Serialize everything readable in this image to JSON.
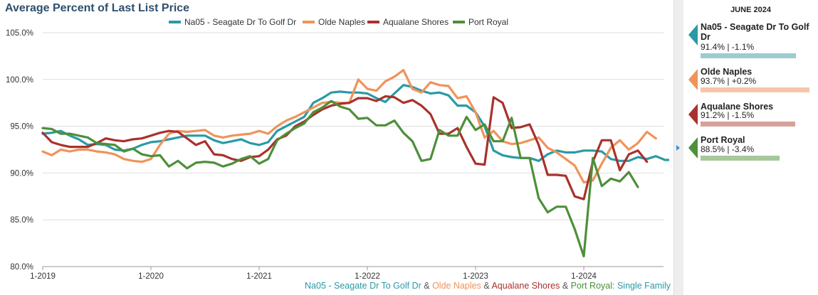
{
  "title": "Average Percent of Last List Price",
  "footer": {
    "parts": [
      {
        "text": "Na05 - Seagate Dr To Golf Dr",
        "color": "#2a9aa5"
      },
      {
        "text": " & ",
        "color": "#555555"
      },
      {
        "text": "Olde Naples",
        "color": "#f0935a"
      },
      {
        "text": " & ",
        "color": "#555555"
      },
      {
        "text": "Aqualane Shores",
        "color": "#a8322b"
      },
      {
        "text": " & ",
        "color": "#555555"
      },
      {
        "text": "Port Royal",
        "color": "#4d8f3a"
      },
      {
        "text": ": Single Family",
        "color": "#2a9aa5"
      }
    ]
  },
  "side_panel": {
    "month": "JUNE 2024",
    "cards": [
      {
        "name": "Na05 - Seagate Dr To Golf Dr",
        "value": "91.4% | -1.1%",
        "color": "#2a9aa5",
        "bar_color": "#9ccbd0",
        "bar_fraction": 0.914
      },
      {
        "name": "Olde Naples",
        "value": "93.7% | +0.2%",
        "color": "#f0935a",
        "bar_color": "#f7c6a8",
        "bar_fraction": 0.937
      },
      {
        "name": "Aqualane Shores",
        "value": "91.2% | -1.5%",
        "color": "#a8322b",
        "bar_color": "#d6a09c",
        "bar_fraction": 0.912
      },
      {
        "name": "Port Royal",
        "value": "88.5% | -3.4%",
        "color": "#4d8f3a",
        "bar_color": "#a6c89a",
        "bar_fraction": 0.885
      }
    ]
  },
  "chart_data": {
    "type": "line",
    "title": "Average Percent of Last List Price",
    "x_start": "2019-01",
    "x_ticks": [
      "1-2019",
      "1-2020",
      "1-2021",
      "1-2022",
      "1-2023",
      "1-2024"
    ],
    "y_ticks": [
      "80.0%",
      "85.0%",
      "90.0%",
      "95.0%",
      "100.0%",
      "105.0%"
    ],
    "ylim": [
      80,
      105
    ],
    "grid": true,
    "legend_position": "top",
    "series": [
      {
        "name": "Na05 - Seagate Dr To Golf Dr",
        "color": "#2a9aa5",
        "values": [
          94.2,
          94.3,
          94.5,
          94.0,
          93.6,
          93.0,
          93.1,
          93.0,
          92.5,
          92.4,
          92.6,
          93.0,
          93.3,
          93.4,
          93.6,
          93.8,
          94.0,
          94.0,
          94.0,
          93.5,
          93.2,
          93.4,
          93.6,
          93.2,
          93.0,
          93.3,
          94.5,
          95.0,
          95.5,
          96.0,
          97.5,
          98.0,
          98.6,
          98.7,
          98.6,
          98.6,
          98.5,
          98.0,
          97.6,
          98.5,
          99.4,
          99.2,
          98.8,
          98.5,
          98.6,
          98.3,
          97.2,
          97.2,
          96.5,
          95.0,
          92.4,
          91.9,
          91.7,
          91.6,
          91.6,
          91.3,
          92.0,
          92.4,
          92.2,
          92.2,
          92.4,
          92.4,
          92.3,
          91.5,
          91.3,
          91.3,
          91.7,
          91.5,
          91.8,
          91.4,
          91.4
        ]
      },
      {
        "name": "Olde Naples",
        "color": "#f0935a",
        "values": [
          92.3,
          91.9,
          92.5,
          92.3,
          92.5,
          92.5,
          92.3,
          92.2,
          92.0,
          91.5,
          91.3,
          91.2,
          91.5,
          93.0,
          94.2,
          94.5,
          94.4,
          94.5,
          94.6,
          94.0,
          93.8,
          94.0,
          94.1,
          94.2,
          94.5,
          94.2,
          95.0,
          95.6,
          96.0,
          96.5,
          97.0,
          97.5,
          97.6,
          97.5,
          97.5,
          100.0,
          99.0,
          98.8,
          99.8,
          100.3,
          101.0,
          99.0,
          98.6,
          99.7,
          99.4,
          99.3,
          98.0,
          98.2,
          96.5,
          93.8,
          94.5,
          93.4,
          93.1,
          93.2,
          93.5,
          93.8,
          92.7,
          92.2,
          91.5,
          90.8,
          89.0,
          89.2,
          91.0,
          92.7,
          93.5,
          92.5,
          93.2,
          94.4,
          93.7
        ]
      },
      {
        "name": "Aqualane Shores",
        "color": "#a8322b",
        "values": [
          94.3,
          93.3,
          93.0,
          92.8,
          92.8,
          92.8,
          93.2,
          93.7,
          93.5,
          93.4,
          93.6,
          93.7,
          94.0,
          94.3,
          94.5,
          94.4,
          93.7,
          93.0,
          93.4,
          92.0,
          91.9,
          91.5,
          91.3,
          91.7,
          91.8,
          92.5,
          93.6,
          94.0,
          95.0,
          95.5,
          96.2,
          96.8,
          97.2,
          97.4,
          97.5,
          98.0,
          98.0,
          97.7,
          98.2,
          98.1,
          97.5,
          97.8,
          97.2,
          96.3,
          94.2,
          94.2,
          94.8,
          92.8,
          91.0,
          90.9,
          98.1,
          97.5,
          94.8,
          94.9,
          95.2,
          93.0,
          89.8,
          89.8,
          89.7,
          87.5,
          87.2,
          91.2,
          93.5,
          93.5,
          90.3,
          92.0,
          92.4,
          91.2
        ]
      },
      {
        "name": "Port Royal",
        "color": "#4d8f3a",
        "values": [
          94.8,
          94.7,
          94.2,
          94.2,
          94.0,
          93.8,
          93.2,
          93.1,
          93.0,
          92.3,
          92.6,
          92.0,
          91.8,
          91.9,
          90.7,
          91.3,
          90.5,
          91.1,
          91.2,
          91.1,
          90.7,
          91.0,
          91.5,
          91.8,
          91.0,
          91.5,
          93.5,
          94.2,
          94.8,
          95.3,
          96.5,
          97.0,
          97.7,
          97.1,
          96.8,
          95.8,
          95.9,
          95.1,
          95.1,
          95.6,
          94.3,
          93.4,
          91.3,
          91.5,
          94.6,
          94.0,
          94.0,
          96.0,
          94.6,
          95.2,
          93.4,
          93.4,
          95.9,
          91.6,
          91.6,
          87.3,
          85.8,
          86.4,
          86.4,
          84.0,
          81.1,
          91.6,
          88.6,
          89.4,
          89.1,
          90.1,
          88.5
        ]
      }
    ]
  }
}
